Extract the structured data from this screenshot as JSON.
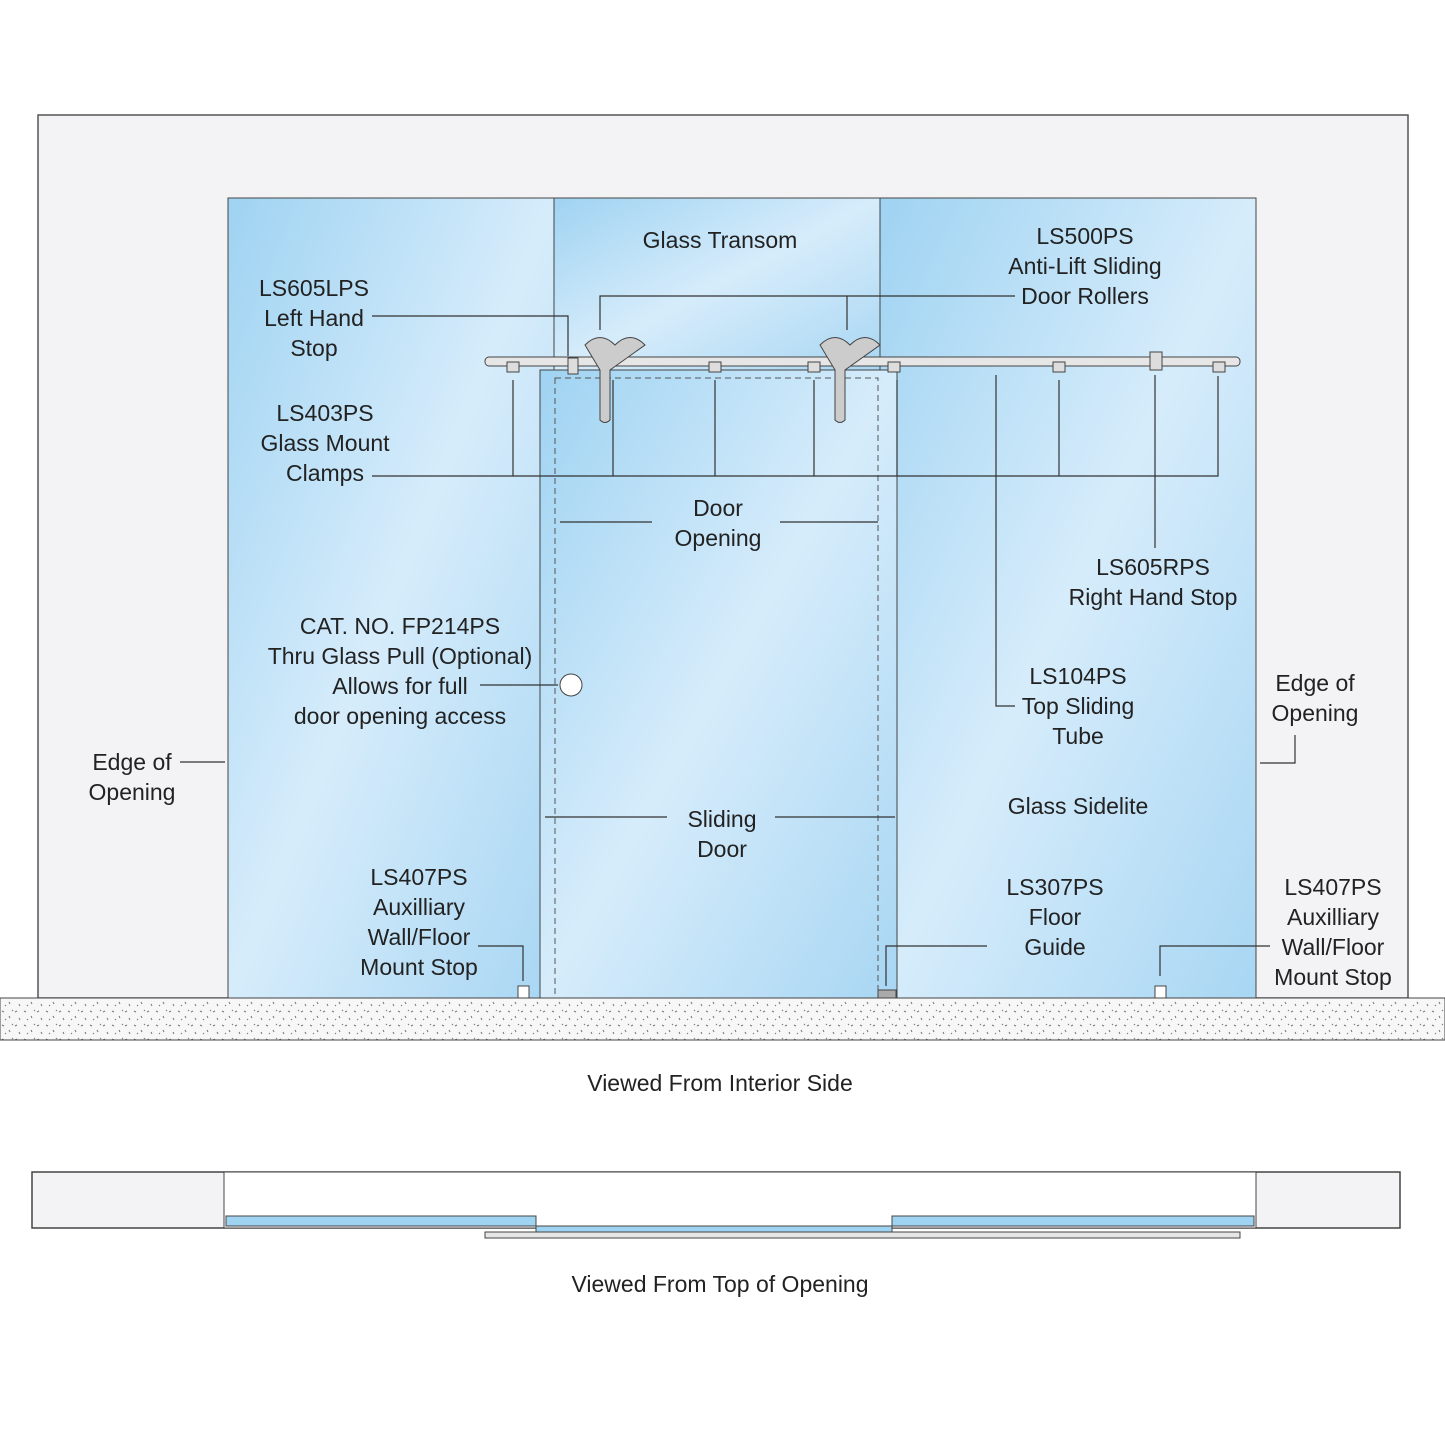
{
  "callouts": [
    [
      "Glass Transom"
    ],
    [
      "LS500PS",
      "Anti-Lift Sliding",
      "Door Rollers"
    ],
    [
      "LS605LPS",
      "Left Hand",
      "Stop"
    ],
    [
      "LS403PS",
      "Glass Mount",
      "Clamps"
    ],
    [
      "Door",
      "Opening"
    ],
    [
      "LS605RPS",
      "Right Hand Stop"
    ],
    [
      "CAT. NO. FP214PS",
      "Thru Glass Pull (Optional)",
      "Allows for full",
      "door opening access"
    ],
    [
      "LS104PS",
      "Top Sliding",
      "Tube"
    ],
    [
      "Edge of",
      "Opening"
    ],
    [
      "Edge of",
      "Opening"
    ],
    [
      "Glass Sidelite"
    ],
    [
      "Sliding",
      "Door"
    ],
    [
      "LS407PS",
      "Auxilliary",
      "Wall/Floor",
      "Mount Stop"
    ],
    [
      "LS307PS",
      "Floor",
      "Guide"
    ],
    [
      "LS407PS",
      "Auxilliary",
      "Wall/Floor",
      "Mount Stop"
    ]
  ],
  "captions": [
    "Viewed From Interior Side",
    "Viewed From Top of Opening"
  ]
}
